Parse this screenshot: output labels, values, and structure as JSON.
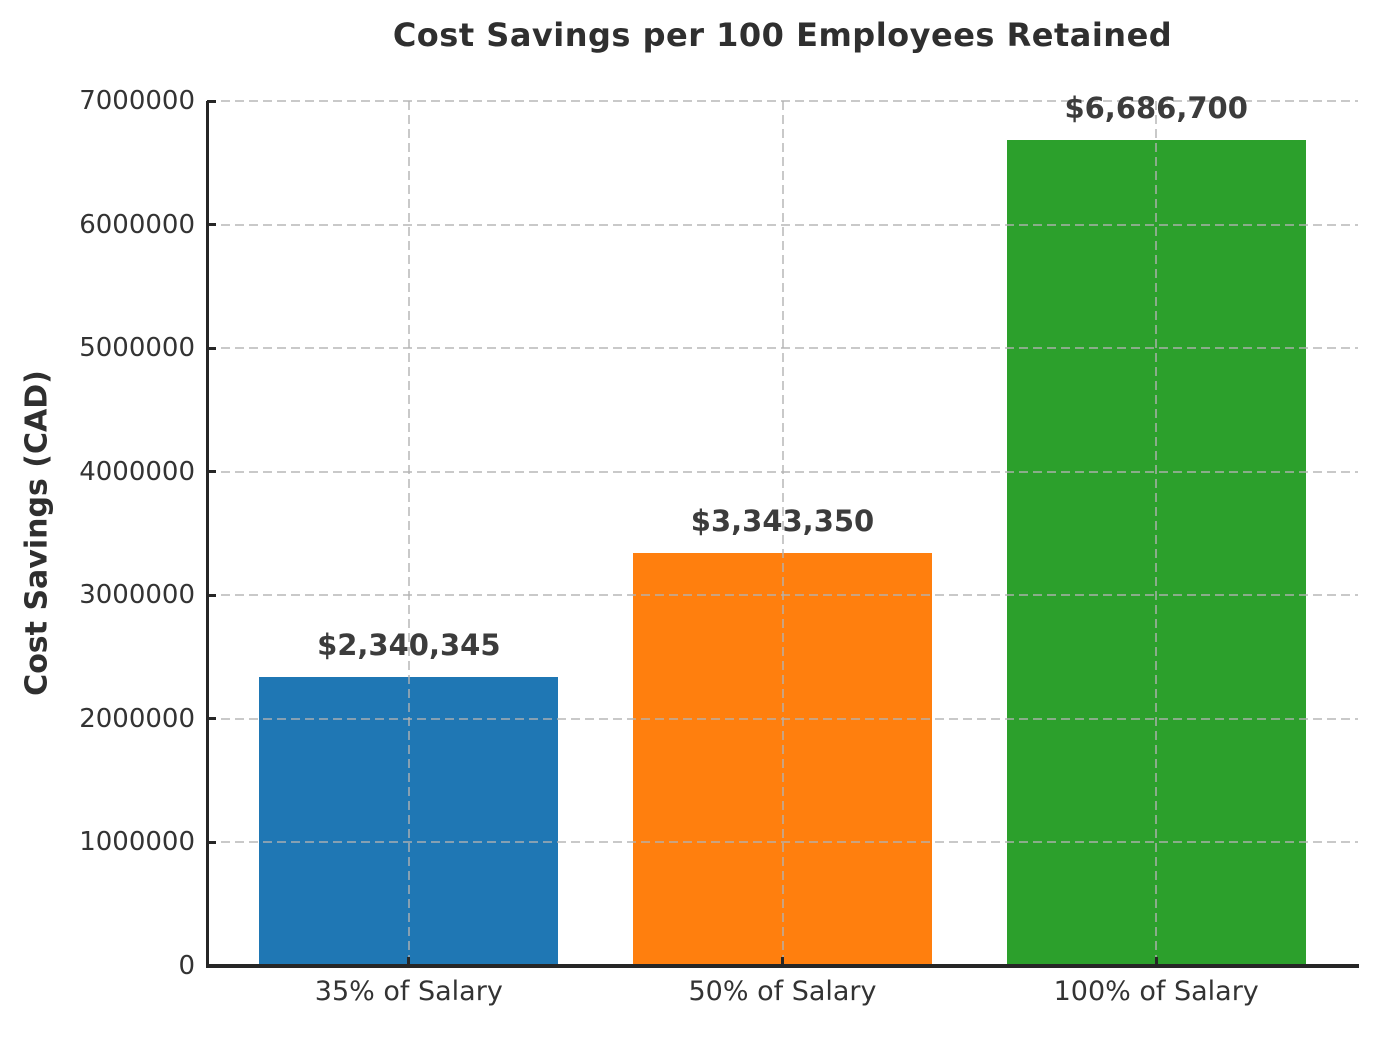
{
  "chart_data": {
    "type": "bar",
    "title": "Cost Savings per 100 Employees Retained",
    "ylabel": "Cost Savings (CAD)",
    "xlabel": "",
    "categories": [
      "35% of Salary",
      "50% of Salary",
      "100% of Salary"
    ],
    "values": [
      2340345,
      3343350,
      6686700
    ],
    "value_labels": [
      "$2,340,345",
      "$3,343,350",
      "$6,686,700"
    ],
    "bar_colors": [
      "#1f77b4",
      "#ff7f0e",
      "#2ca02c"
    ],
    "ylim": [
      0,
      7000000
    ],
    "yticks": [
      0,
      1000000,
      2000000,
      3000000,
      4000000,
      5000000,
      6000000,
      7000000
    ],
    "ytick_labels": [
      "0",
      "1000000",
      "2000000",
      "3000000",
      "4000000",
      "5000000",
      "6000000",
      "7000000"
    ],
    "grid": true,
    "grid_line_style": "dashed",
    "grid_over_bars": true,
    "legend_position": "none"
  },
  "style": {
    "background": "#ffffff",
    "axis_color": "#262626",
    "grid_color_rgba": "rgba(178,178,178,0.7)",
    "title_color": "#2f2f2f",
    "tick_label_color": "#333333",
    "value_label_color": "#3c3c3c"
  }
}
